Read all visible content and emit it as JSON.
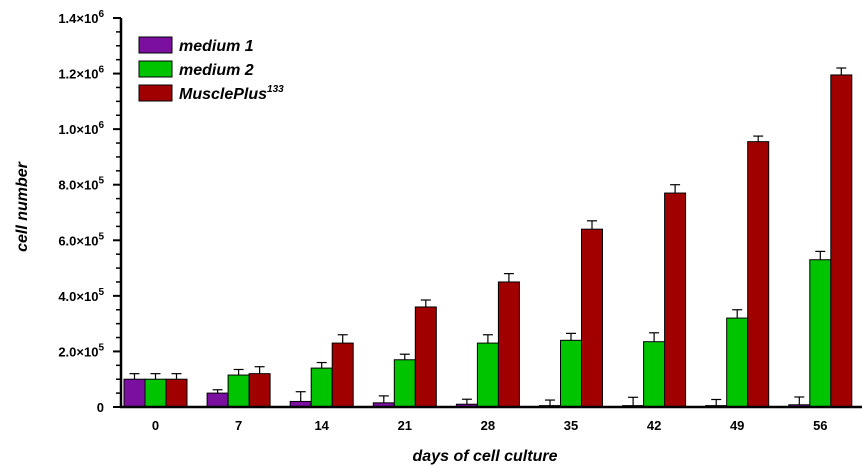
{
  "chart_data": {
    "type": "bar",
    "title": "",
    "xlabel": "days of cell culture",
    "ylabel": "cell number",
    "categories": [
      "0",
      "7",
      "14",
      "21",
      "28",
      "35",
      "42",
      "49",
      "56"
    ],
    "ylim": [
      0,
      1400000
    ],
    "y_ticks": [
      {
        "base": "0",
        "exp": ""
      },
      {
        "base": "2.0×10",
        "exp": "5"
      },
      {
        "base": "4.0×10",
        "exp": "5"
      },
      {
        "base": "6.0×10",
        "exp": "5"
      },
      {
        "base": "8.0×10",
        "exp": "5"
      },
      {
        "base": "1.0×10",
        "exp": "6"
      },
      {
        "base": "1.2×10",
        "exp": "6"
      },
      {
        "base": "1.4×10",
        "exp": "6"
      }
    ],
    "legend_position": "top-left",
    "grid": false,
    "series": [
      {
        "name": "medium 1",
        "name_sup": "",
        "color": "#7b0fa0",
        "values": [
          100000,
          50000,
          20000,
          15000,
          10000,
          5000,
          5000,
          5000,
          8000
        ],
        "errors": [
          20000,
          12000,
          35000,
          25000,
          18000,
          20000,
          30000,
          22000,
          28000
        ]
      },
      {
        "name": "medium 2",
        "name_sup": "",
        "color": "#00c400",
        "values": [
          100000,
          115000,
          140000,
          170000,
          230000,
          240000,
          235000,
          320000,
          530000
        ],
        "errors": [
          20000,
          20000,
          20000,
          20000,
          30000,
          25000,
          32000,
          30000,
          30000
        ]
      },
      {
        "name": "MusclePlus",
        "name_sup": "133",
        "color": "#a00000",
        "values": [
          100000,
          120000,
          230000,
          360000,
          450000,
          640000,
          770000,
          955000,
          1195000
        ],
        "errors": [
          20000,
          25000,
          30000,
          25000,
          30000,
          30000,
          30000,
          20000,
          25000
        ]
      }
    ]
  }
}
